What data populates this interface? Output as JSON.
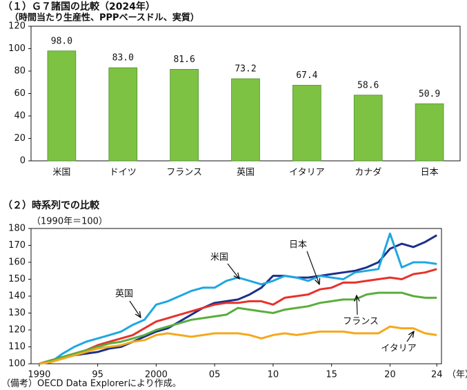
{
  "chart_data": [
    {
      "type": "bar",
      "title": "（１）Ｇ７諸国の比較（2024年）",
      "subtitle": "（時間当たり生産性、PPPベースドル、実質）",
      "categories": [
        "米国",
        "ドイツ",
        "フランス",
        "英国",
        "イタリア",
        "カナダ",
        "日本"
      ],
      "values": [
        98.0,
        83.0,
        81.6,
        73.2,
        67.4,
        58.6,
        50.9
      ],
      "value_labels": [
        "98.0",
        "83.0",
        "81.6",
        "73.2",
        "67.4",
        "58.6",
        "50.9"
      ],
      "color": "#7dc242",
      "ylim": [
        0,
        120
      ],
      "yticks": [
        0,
        20,
        40,
        60,
        80,
        100,
        120
      ],
      "grid": false
    },
    {
      "type": "line",
      "title": "（２）時系列での比較",
      "subtitle": "（1990年＝100）",
      "xlabel": "（年）",
      "x": [
        1990,
        1991,
        1992,
        1993,
        1994,
        1995,
        1996,
        1997,
        1998,
        1999,
        2000,
        2001,
        2002,
        2003,
        2004,
        2005,
        2006,
        2007,
        2008,
        2009,
        2010,
        2011,
        2012,
        2013,
        2014,
        2015,
        2016,
        2017,
        2018,
        2019,
        2020,
        2021,
        2022,
        2023,
        2024
      ],
      "xlim": [
        1989.3,
        2024.4
      ],
      "xticks": [
        1990,
        {
          "value": 1995,
          "label": "95"
        },
        2000,
        {
          "value": 2005,
          "label": "05"
        },
        {
          "value": 2010,
          "label": "10"
        },
        {
          "value": 2015,
          "label": "15"
        },
        {
          "value": 2020,
          "label": "20"
        },
        {
          "value": 2024,
          "label": "24"
        }
      ],
      "ylim": [
        100,
        180
      ],
      "yticks": [
        100,
        110,
        120,
        130,
        140,
        150,
        160,
        170,
        180
      ],
      "grid": false,
      "series": [
        {
          "name": "米国",
          "color": "#1c2f8a",
          "values": [
            100,
            102,
            104,
            105,
            106,
            107,
            109,
            110,
            113,
            116,
            119,
            121,
            125,
            129,
            133,
            136,
            137,
            138,
            141,
            145,
            152,
            152,
            151,
            151,
            152,
            153,
            154,
            155,
            157,
            160,
            168,
            171,
            169,
            172,
            176
          ]
        },
        {
          "name": "英国",
          "color": "#1ea7e1",
          "values": [
            100,
            101,
            106,
            110,
            113,
            115,
            117,
            119,
            123,
            126,
            135,
            137,
            140,
            143,
            145,
            145,
            149,
            151,
            149,
            147,
            149,
            152,
            151,
            149,
            152,
            151,
            150,
            154,
            155,
            156,
            177,
            157,
            160,
            160,
            159
          ]
        },
        {
          "name": "日本",
          "color": "#e8312a",
          "values": [
            100,
            102,
            104,
            106,
            108,
            111,
            113,
            115,
            117,
            121,
            125,
            127,
            129,
            131,
            133,
            135,
            136,
            136,
            137,
            137,
            135,
            139,
            140,
            141,
            144,
            145,
            148,
            148,
            149,
            150,
            151,
            150,
            153,
            154,
            156
          ]
        },
        {
          "name": "フランス",
          "color": "#5aad3c",
          "values": [
            100,
            102,
            104,
            106,
            108,
            110,
            112,
            113,
            115,
            117,
            120,
            122,
            124,
            126,
            127,
            128,
            129,
            133,
            132,
            131,
            130,
            132,
            133,
            134,
            136,
            137,
            138,
            138,
            141,
            142,
            142,
            142,
            140,
            139,
            139
          ]
        },
        {
          "name": "イタリア",
          "color": "#f5a81c",
          "values": [
            100,
            101,
            103,
            105,
            107,
            109,
            110,
            111,
            113,
            114,
            117,
            118,
            117,
            116,
            117,
            118,
            118,
            118,
            117,
            115,
            117,
            118,
            117,
            118,
            119,
            119,
            119,
            118,
            118,
            118,
            122,
            121,
            121,
            118,
            117
          ]
        }
      ]
    }
  ],
  "note": "（備考）OECD Data Explorerにより作成。"
}
